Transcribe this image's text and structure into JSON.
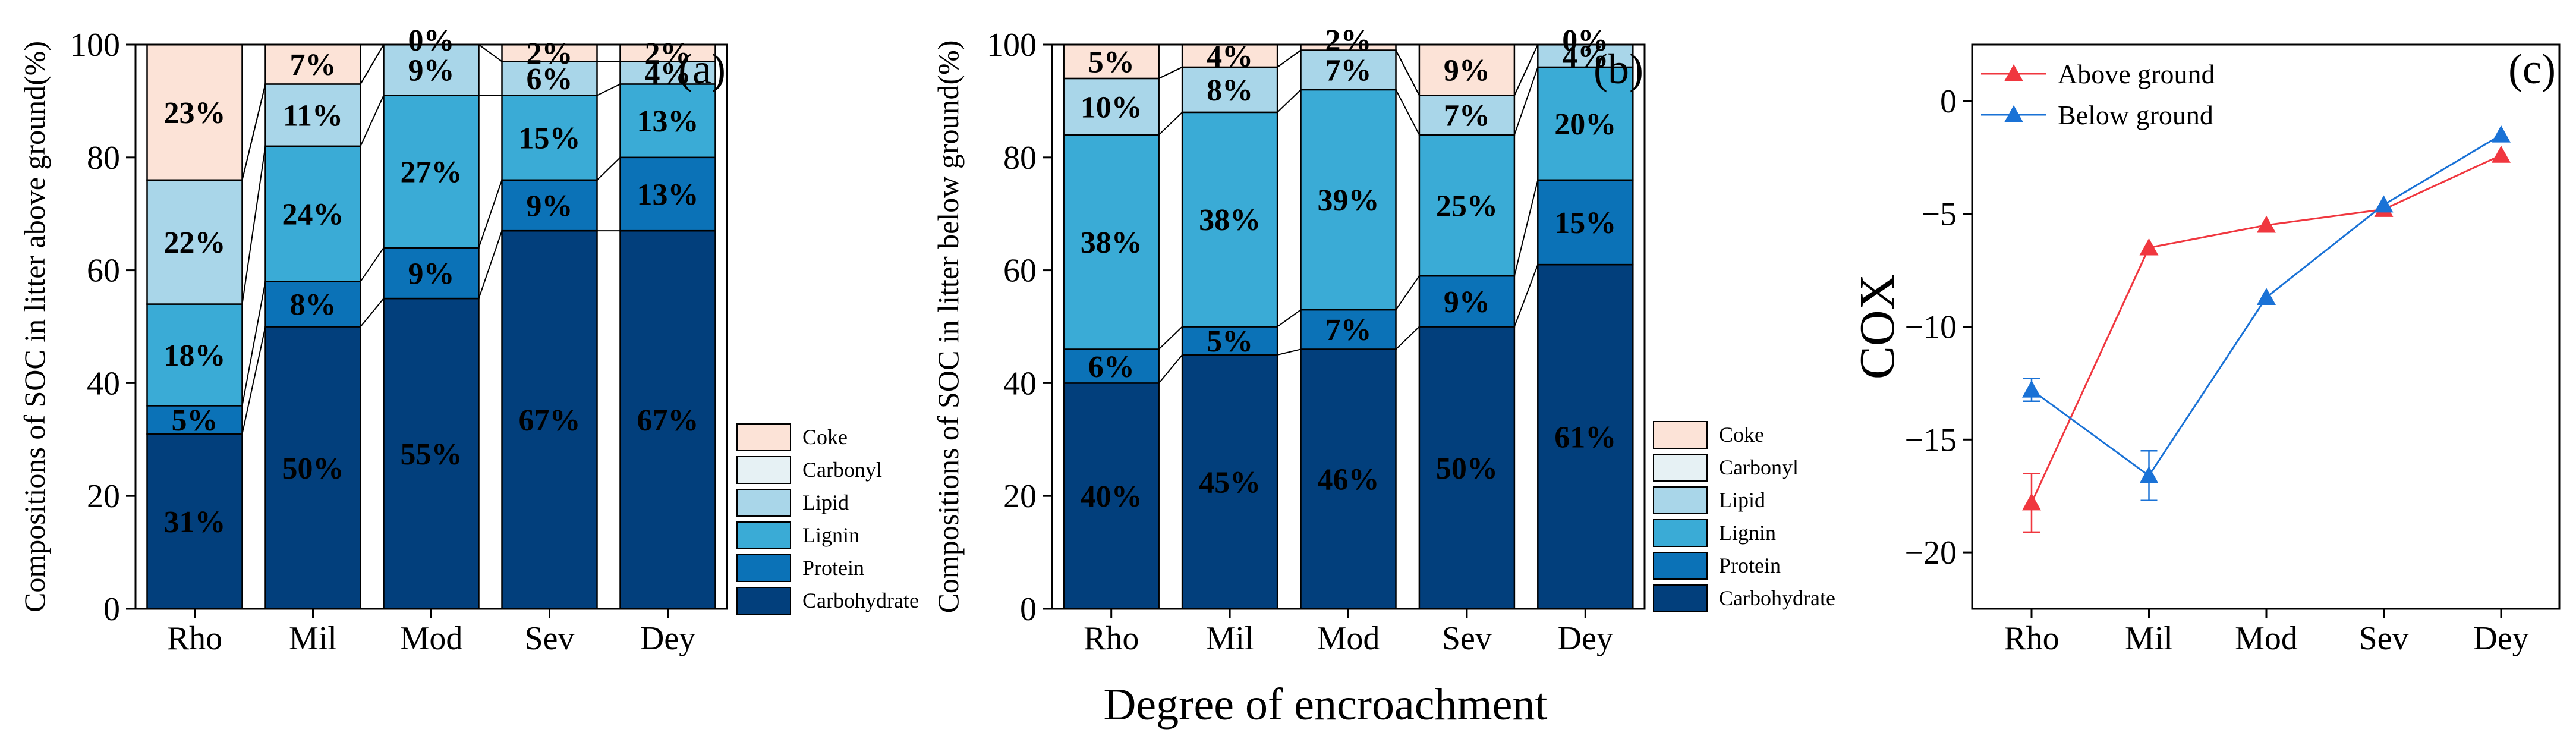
{
  "chart_data": [
    {
      "panel": "(a)",
      "type": "stacked-bar",
      "categories": [
        "Rho",
        "Mil",
        "Mod",
        "Sev",
        "Dey"
      ],
      "ylabel": "Compositions of SOC in litter above ground(%)",
      "ylim": [
        0,
        100
      ],
      "yticks": [
        "0",
        "20",
        "40",
        "60",
        "80",
        "100"
      ],
      "series": [
        {
          "name": "Carbohydrate",
          "color": "#023F7C",
          "values": [
            31,
            50,
            55,
            67,
            67
          ],
          "labels": [
            "31%",
            "50%",
            "55%",
            "67%",
            "67%"
          ]
        },
        {
          "name": "Protein",
          "color": "#0B72B7",
          "values": [
            5,
            8,
            9,
            9,
            13
          ],
          "labels": [
            "5%",
            "8%",
            "9%",
            "9%",
            "13%"
          ]
        },
        {
          "name": "Lignin",
          "color": "#3AABD6",
          "values": [
            18,
            24,
            27,
            15,
            13
          ],
          "labels": [
            "18%",
            "24%",
            "27%",
            "15%",
            "13%"
          ]
        },
        {
          "name": "Lipid",
          "color": "#A9D6E9",
          "values": [
            22,
            11,
            9,
            6,
            4
          ],
          "labels": [
            "22%",
            "11%",
            "9%",
            "6%",
            "4%"
          ]
        },
        {
          "name": "Carbonyl",
          "color": "#E6F1F4",
          "values": [
            0,
            0,
            0,
            0,
            0
          ],
          "labels": [
            "",
            "",
            "0%",
            "",
            ""
          ]
        },
        {
          "name": "Coke",
          "color": "#FCE3D7",
          "values": [
            23,
            7,
            0,
            2,
            2
          ],
          "labels": [
            "23%",
            "7%",
            "",
            "2%",
            "2%"
          ]
        }
      ],
      "legend": [
        "Coke",
        "Carbonyl",
        "Lipid",
        "Lignin",
        "Protein",
        "Carbohydrate"
      ],
      "legend_position": "bottom-right"
    },
    {
      "panel": "(b)",
      "type": "stacked-bar",
      "categories": [
        "Rho",
        "Mil",
        "Mod",
        "Sev",
        "Dey"
      ],
      "ylabel": "Compositions of SOC in litter below ground(%)",
      "ylim": [
        0,
        100
      ],
      "yticks": [
        "0",
        "20",
        "40",
        "60",
        "80",
        "100"
      ],
      "series": [
        {
          "name": "Carbohydrate",
          "color": "#023F7C",
          "values": [
            40,
            45,
            46,
            50,
            61
          ],
          "labels": [
            "40%",
            "45%",
            "46%",
            "50%",
            "61%"
          ]
        },
        {
          "name": "Protein",
          "color": "#0B72B7",
          "values": [
            6,
            5,
            7,
            9,
            15
          ],
          "labels": [
            "6%",
            "5%",
            "7%",
            "9%",
            "15%"
          ]
        },
        {
          "name": "Lignin",
          "color": "#3AABD6",
          "values": [
            38,
            38,
            39,
            25,
            20
          ],
          "labels": [
            "38%",
            "38%",
            "39%",
            "25%",
            "20%"
          ]
        },
        {
          "name": "Lipid",
          "color": "#A9D6E9",
          "values": [
            10,
            8,
            7,
            7,
            4
          ],
          "labels": [
            "10%",
            "8%",
            "7%",
            "7%",
            "4%"
          ]
        },
        {
          "name": "Carbonyl",
          "color": "#E6F1F4",
          "values": [
            0,
            0,
            0,
            0,
            0
          ],
          "labels": [
            "",
            "",
            "",
            "",
            "0%"
          ]
        },
        {
          "name": "Coke",
          "color": "#FCE3D7",
          "values": [
            5,
            4,
            2,
            9,
            0
          ],
          "labels": [
            "5%",
            "4%",
            "2%",
            "9%",
            ""
          ]
        }
      ],
      "legend": [
        "Coke",
        "Carbonyl",
        "Lipid",
        "Lignin",
        "Protein",
        "Carbohydrate"
      ],
      "legend_position": "bottom-right"
    },
    {
      "panel": "(c)",
      "type": "line",
      "categories": [
        "Rho",
        "Mil",
        "Mod",
        "Sev",
        "Dey"
      ],
      "ylabel": "COX",
      "ylim": [
        -22.5,
        2.5
      ],
      "yticks": [
        0,
        -5,
        -10,
        -15,
        -20
      ],
      "ytick_labels": [
        "0",
        "−5",
        "−10",
        "−15",
        "−20"
      ],
      "series": [
        {
          "name": "Above ground",
          "color": "#F0373F",
          "values": [
            -17.8,
            -6.5,
            -5.5,
            -4.8,
            -2.4
          ],
          "errors": [
            1.3,
            0,
            0,
            0,
            0
          ]
        },
        {
          "name": "Below ground",
          "color": "#1A72D6",
          "values": [
            -12.8,
            -16.6,
            -8.7,
            -4.6,
            -1.5
          ],
          "errors": [
            0.5,
            1.1,
            0,
            0,
            0
          ]
        }
      ],
      "legend_position": "top-left"
    }
  ],
  "shared_xlabel": "Degree of encroachment"
}
